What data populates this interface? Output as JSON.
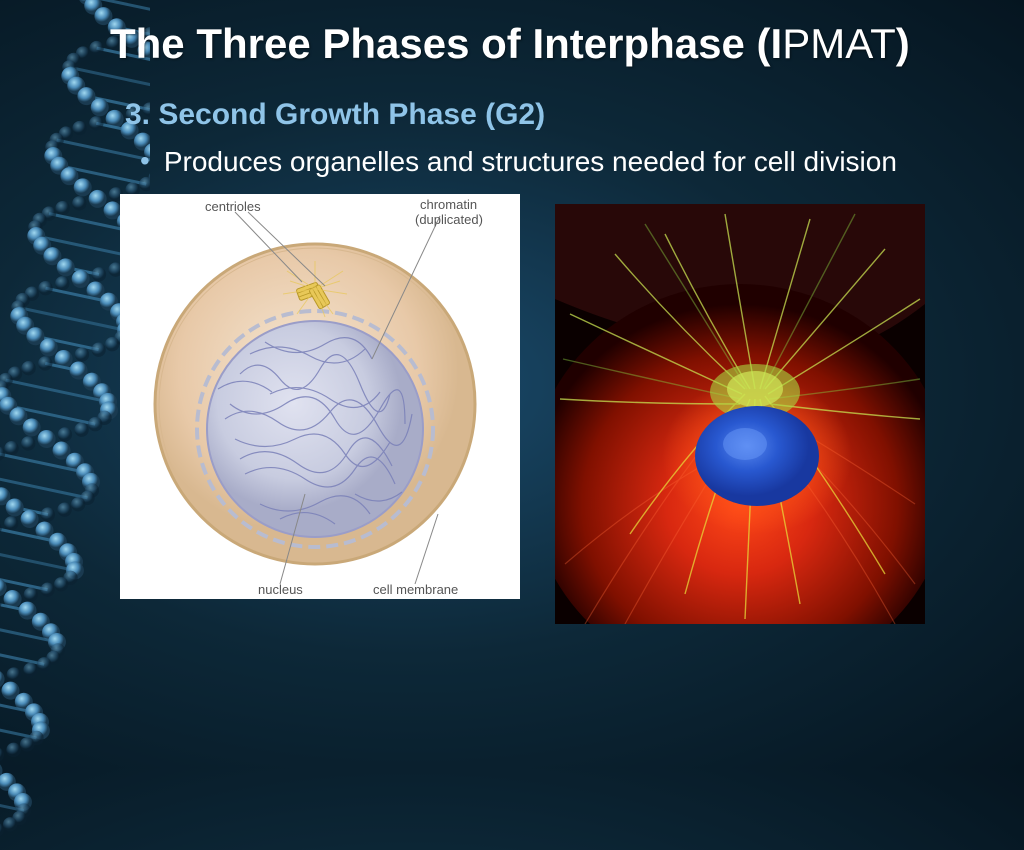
{
  "title": {
    "prefix": "The Three Phases of Interphase (I",
    "pmat": "PMAT",
    "suffix": ")"
  },
  "subhead": "3. Second Growth Phase (G2)",
  "bullet": "Produces organelles and structures needed for cell division",
  "diagram": {
    "labels": {
      "centrioles": "centrioles",
      "chromatin": "chromatin",
      "chromatin2": "(duplicated)",
      "nucleus": "nucleus",
      "cell_membrane": "cell membrane"
    },
    "colors": {
      "cell_outer": "#e8c9a8",
      "cell_inner": "#f5e6d3",
      "membrane_line": "#c9a878",
      "nucleus_fill": "#d0d2e8",
      "nucleus_border": "#9a9dc8",
      "chromatin": "#8a8fc0",
      "centriole": "#e8c858",
      "centriole_dark": "#c8a838",
      "label_line": "#888888"
    }
  },
  "micrograph": {
    "colors": {
      "bg_dark": "#1a0000",
      "fiber_red": "#d82810",
      "fiber_red_dark": "#a01000",
      "fiber_yellow": "#e8d838",
      "fiber_green": "#88c840",
      "nucleus_blue": "#2858d0",
      "nucleus_blue_light": "#4878e8",
      "glow_orange": "#ff6820"
    }
  },
  "dna_colors": {
    "strand1": "#4a8bb8",
    "strand2": "#2d5a7a",
    "base1": "#6fb8e0",
    "base2": "#3878a0",
    "highlight": "#a0d8f0"
  }
}
